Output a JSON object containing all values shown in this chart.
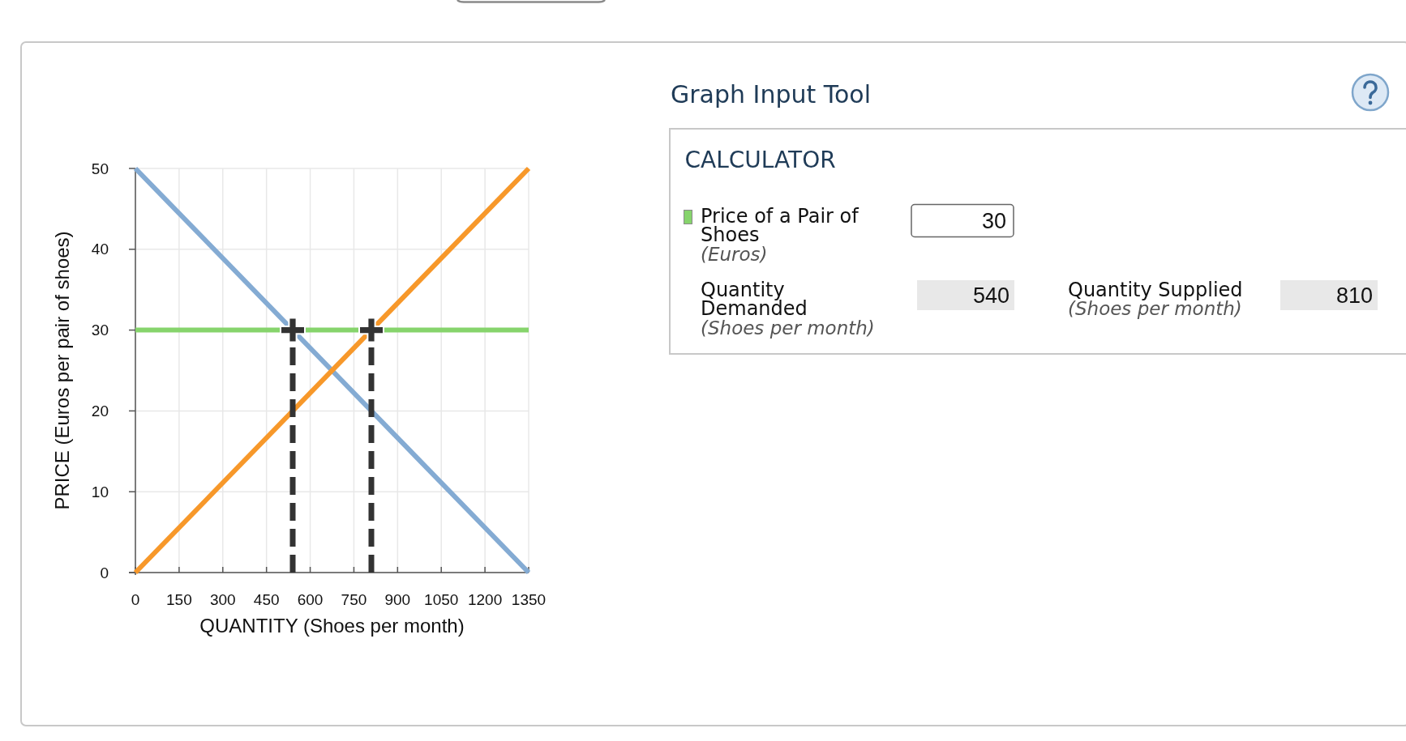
{
  "chart_data": [
    {
      "type": "line",
      "xlabel": "QUANTITY (Shoes per month)",
      "ylabel": "PRICE (Euros per pair of shoes)",
      "xlim": [
        0,
        1350
      ],
      "xticks": [
        0,
        150,
        300,
        450,
        600,
        750,
        900,
        1050,
        1200,
        1350
      ],
      "ylim": [
        0,
        50
      ],
      "yticks": [
        0,
        10,
        20,
        30,
        40,
        50
      ],
      "grid": true,
      "series": [
        {
          "color": "#84abd3",
          "x": [
            0,
            1350
          ],
          "values": [
            50,
            0
          ]
        },
        {
          "color": "#f7982a",
          "x": [
            0,
            1350
          ],
          "values": [
            0,
            50
          ]
        },
        {
          "color": "#86d46c",
          "x": [
            0,
            1350
          ],
          "values": [
            30,
            30
          ]
        },
        {
          "type": "line",
          "line_style": "dashed",
          "color": "#333333",
          "x": [
            540,
            540
          ],
          "values": [
            0,
            30
          ]
        },
        {
          "type": "line",
          "line_style": "dashed",
          "color": "#333333",
          "x": [
            810,
            810
          ],
          "values": [
            0,
            30
          ]
        },
        {
          "type": "scatter",
          "marker": "cross",
          "color": "#333333",
          "x": [
            540,
            810
          ],
          "values": [
            30,
            30
          ]
        }
      ]
    },
    {
      "type": "other",
      "title": "Graph Input Tool",
      "subtitle": "CALCULATOR",
      "annotations": [
        "Price of a Pair of Shoes",
        "(Euros)",
        "30",
        "Quantity Demanded",
        "(Shoes per month)",
        "540",
        "Quantity Supplied",
        "(Shoes per month)",
        "810"
      ]
    }
  ]
}
